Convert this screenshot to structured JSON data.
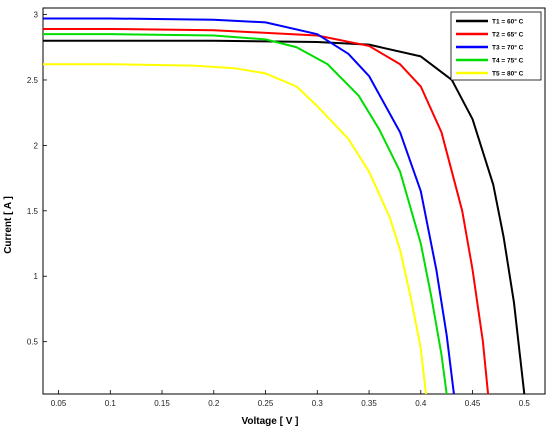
{
  "chart_data": {
    "type": "line",
    "title": "",
    "xlabel": "Voltage [ V ]",
    "ylabel": "Current [ A ]",
    "xlim": [
      0.035,
      0.52
    ],
    "ylim": [
      0.1,
      3.05
    ],
    "xticks": [
      "0.05",
      "0.1",
      "0.15",
      "0.2",
      "0.25",
      "0.3",
      "0.35",
      "0.4",
      "0.45",
      "0.5"
    ],
    "yticks": [
      "0.5",
      "1",
      "1.5",
      "2",
      "2.5",
      "3"
    ],
    "grid": false,
    "legend": {
      "position": "top-right"
    },
    "series": [
      {
        "name": "T1 = 60° C",
        "color": "#000000",
        "isc": 2.8,
        "voc": 0.5,
        "x": [
          0.035,
          0.1,
          0.2,
          0.3,
          0.35,
          0.4,
          0.43,
          0.45,
          0.47,
          0.48,
          0.49,
          0.5
        ],
        "y": [
          2.8,
          2.8,
          2.8,
          2.79,
          2.77,
          2.68,
          2.5,
          2.2,
          1.7,
          1.3,
          0.8,
          0.1
        ]
      },
      {
        "name": "T2 = 65° C",
        "color": "#ff0000",
        "isc": 2.89,
        "voc": 0.465,
        "x": [
          0.035,
          0.1,
          0.2,
          0.3,
          0.35,
          0.38,
          0.4,
          0.42,
          0.44,
          0.45,
          0.46,
          0.465
        ],
        "y": [
          2.89,
          2.89,
          2.88,
          2.84,
          2.76,
          2.62,
          2.45,
          2.1,
          1.5,
          1.05,
          0.5,
          0.1
        ]
      },
      {
        "name": "T3 = 70° C",
        "color": "#0000ff",
        "isc": 2.97,
        "voc": 0.432,
        "x": [
          0.035,
          0.1,
          0.2,
          0.25,
          0.3,
          0.33,
          0.35,
          0.38,
          0.4,
          0.415,
          0.425,
          0.432
        ],
        "y": [
          2.97,
          2.97,
          2.96,
          2.94,
          2.85,
          2.7,
          2.53,
          2.1,
          1.65,
          1.05,
          0.55,
          0.1
        ]
      },
      {
        "name": "T4 = 75° C",
        "color": "#00dd00",
        "isc": 2.85,
        "voc": 0.425,
        "x": [
          0.035,
          0.1,
          0.2,
          0.25,
          0.28,
          0.31,
          0.34,
          0.36,
          0.38,
          0.4,
          0.41,
          0.42,
          0.425
        ],
        "y": [
          2.85,
          2.85,
          2.84,
          2.81,
          2.75,
          2.62,
          2.38,
          2.12,
          1.8,
          1.25,
          0.85,
          0.4,
          0.1
        ]
      },
      {
        "name": "T5 = 80° C",
        "color": "#ffff00",
        "isc": 2.62,
        "voc": 0.405,
        "x": [
          0.035,
          0.1,
          0.18,
          0.22,
          0.25,
          0.28,
          0.3,
          0.33,
          0.35,
          0.37,
          0.38,
          0.39,
          0.4,
          0.405
        ],
        "y": [
          2.62,
          2.62,
          2.61,
          2.59,
          2.55,
          2.45,
          2.3,
          2.05,
          1.8,
          1.45,
          1.2,
          0.85,
          0.45,
          0.1
        ]
      }
    ]
  }
}
